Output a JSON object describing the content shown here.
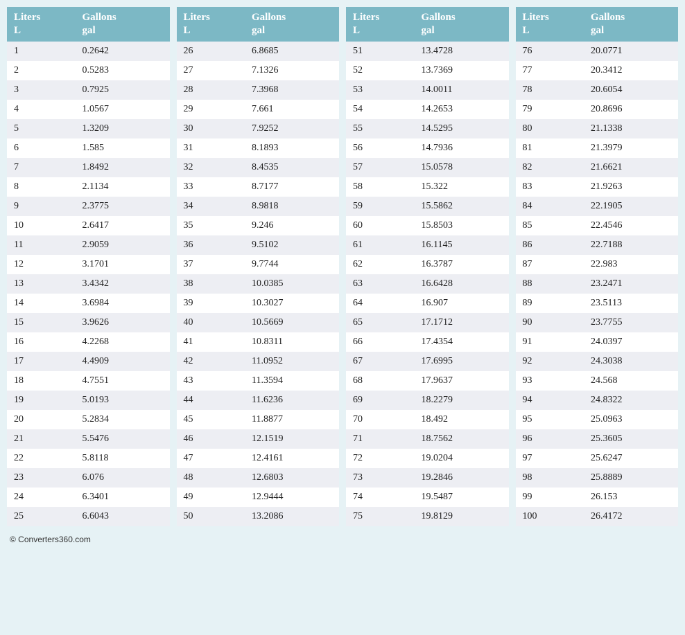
{
  "page_background": "#e6f2f5",
  "header_bg": "#7cb8c5",
  "header_text_color": "#ffffff",
  "row_odd_bg": "#edeef3",
  "row_even_bg": "#ffffff",
  "font_family": "Georgia, serif",
  "columns_per_table": 2,
  "tables": 4,
  "rows_per_table": 25,
  "headers": {
    "col1_name": "Liters",
    "col1_unit": "L",
    "col2_name": "Gallons",
    "col2_unit": "gal"
  },
  "data": {
    "1": "0.2642",
    "2": "0.5283",
    "3": "0.7925",
    "4": "1.0567",
    "5": "1.3209",
    "6": "1.585",
    "7": "1.8492",
    "8": "2.1134",
    "9": "2.3775",
    "10": "2.6417",
    "11": "2.9059",
    "12": "3.1701",
    "13": "3.4342",
    "14": "3.6984",
    "15": "3.9626",
    "16": "4.2268",
    "17": "4.4909",
    "18": "4.7551",
    "19": "5.0193",
    "20": "5.2834",
    "21": "5.5476",
    "22": "5.8118",
    "23": "6.076",
    "24": "6.3401",
    "25": "6.6043",
    "26": "6.8685",
    "27": "7.1326",
    "28": "7.3968",
    "29": "7.661",
    "30": "7.9252",
    "31": "8.1893",
    "32": "8.4535",
    "33": "8.7177",
    "34": "8.9818",
    "35": "9.246",
    "36": "9.5102",
    "37": "9.7744",
    "38": "10.0385",
    "39": "10.3027",
    "40": "10.5669",
    "41": "10.8311",
    "42": "11.0952",
    "43": "11.3594",
    "44": "11.6236",
    "45": "11.8877",
    "46": "12.1519",
    "47": "12.4161",
    "48": "12.6803",
    "49": "12.9444",
    "50": "13.2086",
    "51": "13.4728",
    "52": "13.7369",
    "53": "14.0011",
    "54": "14.2653",
    "55": "14.5295",
    "56": "14.7936",
    "57": "15.0578",
    "58": "15.322",
    "59": "15.5862",
    "60": "15.8503",
    "61": "16.1145",
    "62": "16.3787",
    "63": "16.6428",
    "64": "16.907",
    "65": "17.1712",
    "66": "17.4354",
    "67": "17.6995",
    "68": "17.9637",
    "69": "18.2279",
    "70": "18.492",
    "71": "18.7562",
    "72": "19.0204",
    "73": "19.2846",
    "74": "19.5487",
    "75": "19.8129",
    "76": "20.0771",
    "77": "20.3412",
    "78": "20.6054",
    "79": "20.8696",
    "80": "21.1338",
    "81": "21.3979",
    "82": "21.6621",
    "83": "21.9263",
    "84": "22.1905",
    "85": "22.4546",
    "86": "22.7188",
    "87": "22.983",
    "88": "23.2471",
    "89": "23.5113",
    "90": "23.7755",
    "91": "24.0397",
    "92": "24.3038",
    "93": "24.568",
    "94": "24.8322",
    "95": "25.0963",
    "96": "25.3605",
    "97": "25.6247",
    "98": "25.8889",
    "99": "26.153",
    "100": "26.4172"
  },
  "footer": "© Converters360.com"
}
